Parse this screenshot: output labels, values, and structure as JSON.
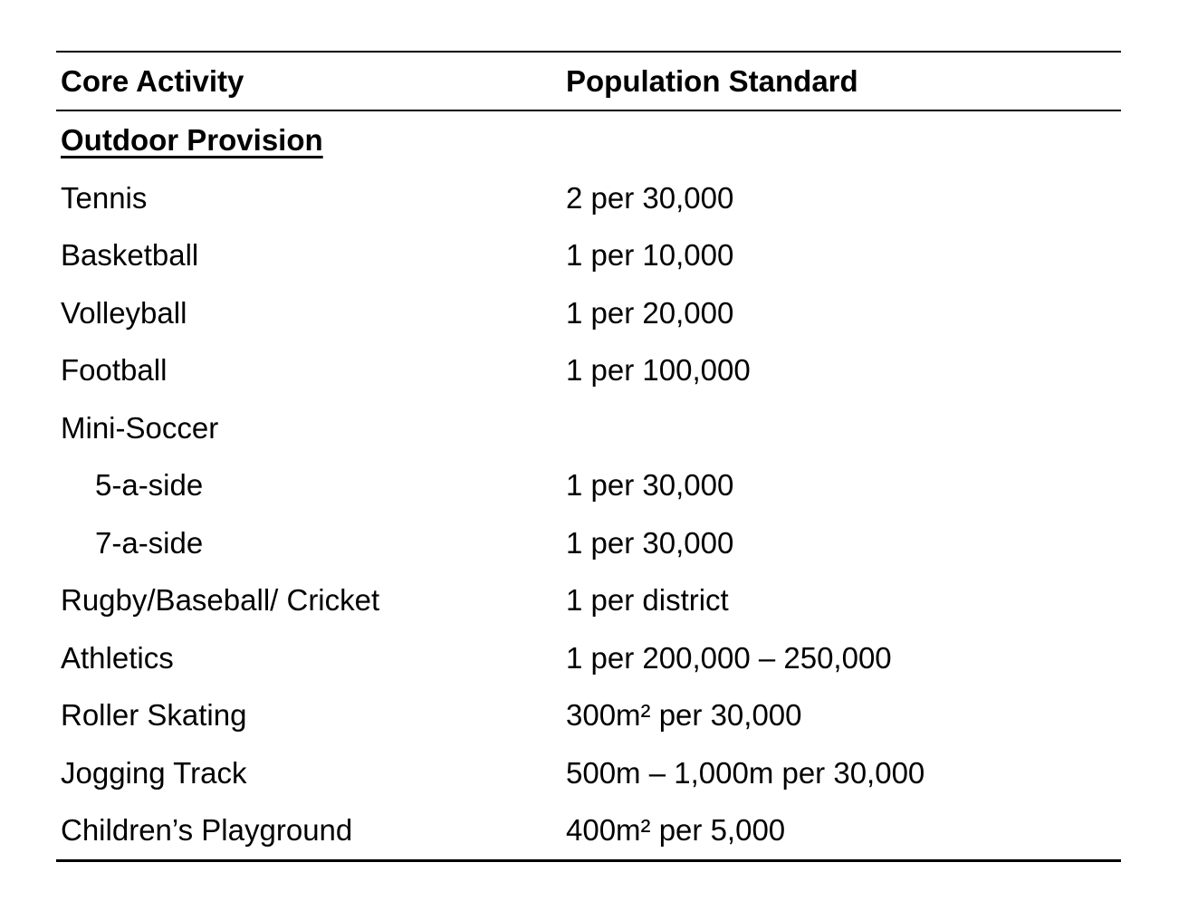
{
  "page": {
    "background_color": "#ffffff",
    "text_color": "#000000",
    "rule_color": "#000000"
  },
  "table": {
    "header": {
      "core_activity": "Core Activity",
      "population_standard": "Population Standard"
    },
    "section_heading": "Outdoor Provision",
    "rows": [
      {
        "activity": "Tennis",
        "standard": "2 per 30,000"
      },
      {
        "activity": "Basketball",
        "standard": "1 per 10,000"
      },
      {
        "activity": "Volleyball",
        "standard": "1 per 20,000"
      },
      {
        "activity": "Football",
        "standard": "1 per 100,000"
      },
      {
        "activity": "Mini-Soccer",
        "standard": ""
      },
      {
        "activity": "5-a-side",
        "standard": "1 per 30,000"
      },
      {
        "activity": "7-a-side",
        "standard": "1 per 30,000"
      },
      {
        "activity": "Rugby/Baseball/ Cricket",
        "standard": "1 per district"
      },
      {
        "activity": "Athletics",
        "standard": "1 per 200,000 – 250,000"
      },
      {
        "activity": "Roller Skating",
        "standard": "300m² per 30,000"
      },
      {
        "activity": "Jogging Track",
        "standard": "500m – 1,000m per 30,000"
      },
      {
        "activity": "Children’s Playground",
        "standard": "400m² per 5,000"
      }
    ]
  }
}
